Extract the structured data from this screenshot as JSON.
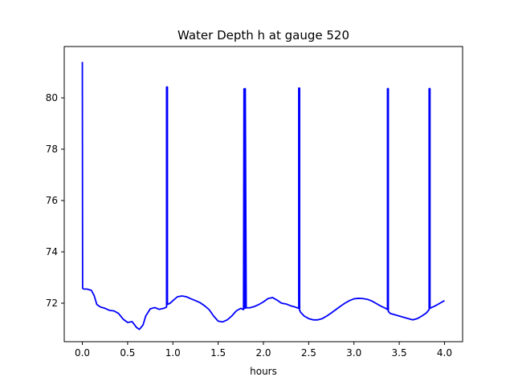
{
  "chart_data": {
    "type": "line",
    "title": "Water Depth h at gauge 520",
    "xlabel": "hours",
    "ylabel": "",
    "xlim": [
      -0.2,
      4.2
    ],
    "ylim": [
      70.5,
      82.0
    ],
    "xticks": [
      0.0,
      0.5,
      1.0,
      1.5,
      2.0,
      2.5,
      3.0,
      3.5,
      4.0
    ],
    "xtick_labels": [
      "0.0",
      "0.5",
      "1.0",
      "1.5",
      "2.0",
      "2.5",
      "3.0",
      "3.5",
      "4.0"
    ],
    "yticks": [
      72,
      74,
      76,
      78,
      80
    ],
    "ytick_labels": [
      "72",
      "74",
      "76",
      "78",
      "80"
    ],
    "grid": false,
    "series": [
      {
        "color": "#0000ff",
        "x": [
          0.0,
          0.0,
          0.003,
          0.005,
          0.02,
          0.05,
          0.1,
          0.13,
          0.16,
          0.2,
          0.25,
          0.3,
          0.35,
          0.4,
          0.45,
          0.5,
          0.55,
          0.6,
          0.63,
          0.67,
          0.7,
          0.75,
          0.8,
          0.85,
          0.9,
          0.93,
          0.93,
          0.94,
          0.94,
          0.97,
          1.0,
          1.05,
          1.1,
          1.15,
          1.2,
          1.25,
          1.3,
          1.35,
          1.4,
          1.45,
          1.5,
          1.55,
          1.6,
          1.65,
          1.7,
          1.75,
          1.78,
          1.785,
          1.79,
          1.79,
          1.8,
          1.8,
          1.81,
          1.85,
          1.9,
          1.95,
          2.0,
          2.05,
          2.1,
          2.15,
          2.2,
          2.25,
          2.3,
          2.35,
          2.39,
          2.39,
          2.4,
          2.4,
          2.41,
          2.45,
          2.5,
          2.55,
          2.6,
          2.65,
          2.7,
          2.75,
          2.8,
          2.85,
          2.9,
          2.95,
          3.0,
          3.05,
          3.1,
          3.15,
          3.2,
          3.25,
          3.3,
          3.35,
          3.37,
          3.37,
          3.38,
          3.38,
          3.4,
          3.45,
          3.5,
          3.55,
          3.6,
          3.65,
          3.7,
          3.75,
          3.8,
          3.83,
          3.83,
          3.84,
          3.84,
          3.85,
          3.9,
          3.95,
          4.0
        ],
        "y": [
          81.4,
          81.1,
          72.6,
          72.57,
          72.55,
          72.55,
          72.5,
          72.3,
          71.95,
          71.85,
          71.8,
          71.72,
          71.7,
          71.6,
          71.38,
          71.25,
          71.28,
          71.05,
          70.98,
          71.15,
          71.5,
          71.78,
          71.83,
          71.76,
          71.8,
          71.85,
          80.42,
          80.42,
          71.95,
          72.0,
          72.1,
          72.25,
          72.28,
          72.25,
          72.17,
          72.1,
          72.02,
          71.9,
          71.75,
          71.5,
          71.3,
          71.27,
          71.35,
          71.5,
          71.7,
          71.8,
          71.75,
          80.35,
          80.35,
          71.8,
          71.8,
          80.36,
          71.82,
          71.82,
          71.87,
          71.95,
          72.05,
          72.18,
          72.22,
          72.12,
          72.0,
          71.97,
          71.9,
          71.85,
          71.8,
          80.38,
          80.38,
          71.72,
          71.65,
          71.5,
          71.4,
          71.35,
          71.35,
          71.4,
          71.5,
          71.62,
          71.75,
          71.88,
          72.0,
          72.1,
          72.17,
          72.19,
          72.18,
          72.15,
          72.08,
          71.98,
          71.88,
          71.8,
          71.75,
          80.36,
          80.36,
          71.68,
          71.6,
          71.55,
          71.5,
          71.45,
          71.4,
          71.35,
          71.4,
          71.5,
          71.62,
          71.75,
          80.36,
          80.36,
          71.8,
          71.82,
          71.9,
          72.0,
          72.1
        ]
      }
    ]
  }
}
